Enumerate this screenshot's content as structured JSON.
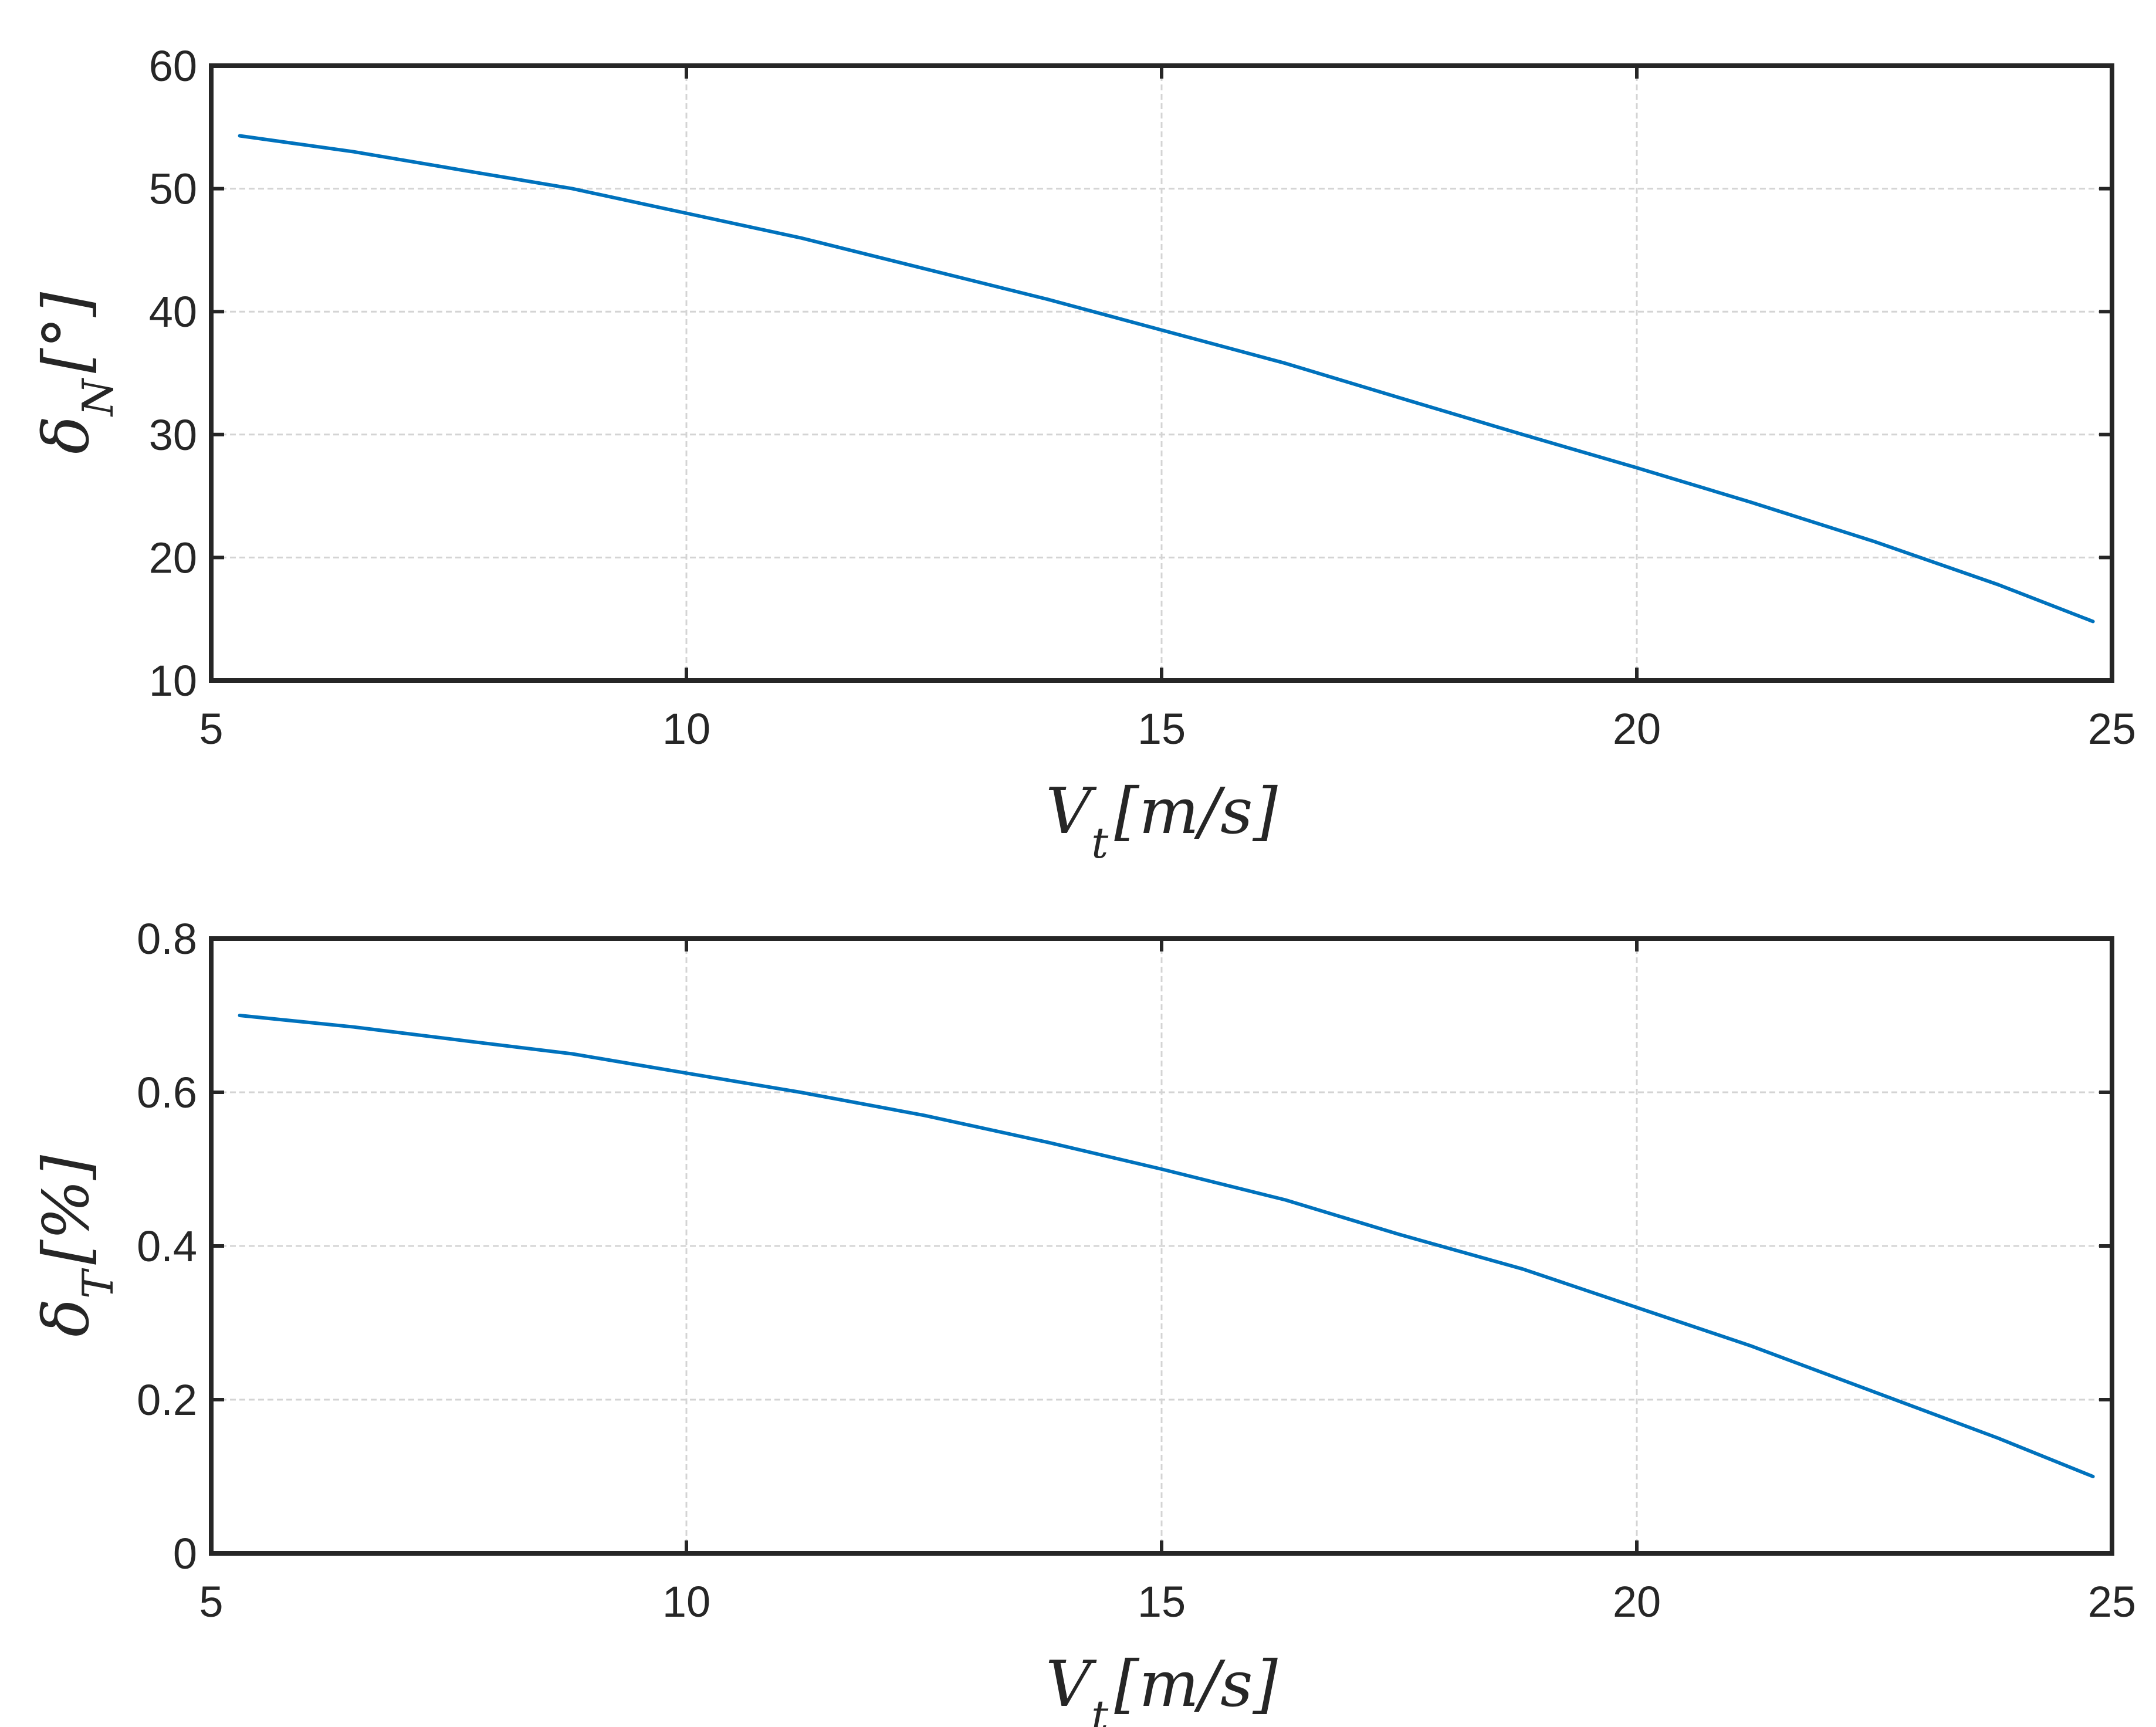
{
  "colors": {
    "series": "#0072BD",
    "axes": "#262626",
    "grid": "#d4d4d4"
  },
  "chart_data": [
    {
      "type": "line",
      "title": "",
      "xlabel": {
        "base": "V",
        "sub": "t",
        "unit": "[m/s]"
      },
      "ylabel": {
        "base": "δ",
        "sub": "N",
        "unit": "[°]"
      },
      "xlim": [
        5,
        25
      ],
      "ylim": [
        10,
        60
      ],
      "xticks": [
        "5",
        "10",
        "15",
        "20",
        "25"
      ],
      "yticks": [
        "10",
        "20",
        "30",
        "40",
        "50",
        "60"
      ],
      "grid": true,
      "series": [
        {
          "x": [
            5.3,
            6.5,
            7.8,
            8.8,
            10,
            11.2,
            12.5,
            13.8,
            15,
            16.3,
            17.5,
            18.8,
            20,
            21.2,
            22.5,
            23.8,
            24.8
          ],
          "values": [
            54.3,
            53.0,
            51.3,
            50.0,
            48.0,
            46.0,
            43.5,
            41.0,
            38.5,
            35.8,
            33.0,
            30.0,
            27.3,
            24.5,
            21.3,
            17.8,
            14.8
          ]
        }
      ]
    },
    {
      "type": "line",
      "title": "",
      "xlabel": {
        "base": "V",
        "sub": "t",
        "unit": "[m/s]"
      },
      "ylabel": {
        "base": "δ",
        "sub": "T",
        "unit": "[%]"
      },
      "xlim": [
        5,
        25
      ],
      "ylim": [
        0,
        0.8
      ],
      "xticks": [
        "5",
        "10",
        "15",
        "20",
        "25"
      ],
      "yticks": [
        "0",
        "0.2",
        "0.4",
        "0.6",
        "0.8"
      ],
      "grid": true,
      "series": [
        {
          "x": [
            5.3,
            6.5,
            7.8,
            8.8,
            10,
            11.2,
            12.5,
            13.8,
            15,
            16.3,
            17.5,
            18.8,
            20,
            21.2,
            22.5,
            23.8,
            24.8
          ],
          "values": [
            0.7,
            0.685,
            0.665,
            0.65,
            0.625,
            0.6,
            0.57,
            0.535,
            0.5,
            0.46,
            0.415,
            0.37,
            0.32,
            0.27,
            0.21,
            0.15,
            0.1
          ]
        }
      ]
    }
  ]
}
